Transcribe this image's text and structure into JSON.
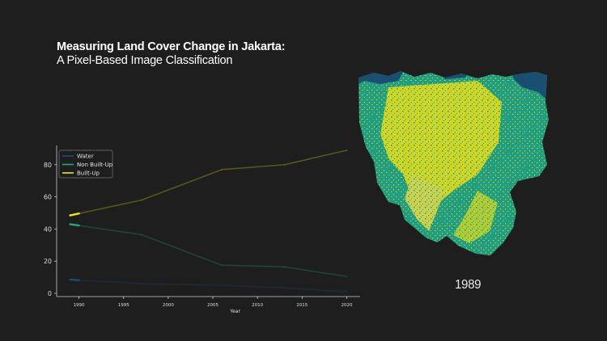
{
  "header": {
    "title": "Measuring Land Cover Change in Jakarta:",
    "subtitle": "A Pixel-Based Image Classification"
  },
  "map": {
    "year_label": "1989",
    "palette": {
      "water": "#1b4f72",
      "non_built_up": "#23a884",
      "built_up": "#e8e81a"
    }
  },
  "chart_data": {
    "type": "line",
    "title": "",
    "xlabel": "Year",
    "ylabel": "",
    "xlim": [
      1987.5,
      2021.5
    ],
    "ylim": [
      -2,
      92
    ],
    "xticks": [
      1990,
      1995,
      2000,
      2005,
      2010,
      2015,
      2020
    ],
    "yticks": [
      0,
      20,
      40,
      60,
      80
    ],
    "x": [
      1989,
      1997,
      2006,
      2013,
      2020
    ],
    "highlight_range": [
      1989,
      1990
    ],
    "grid": false,
    "legend_position": "top-left",
    "series": [
      {
        "name": "Water",
        "color": "#1b4f72",
        "values": [
          8.5,
          6,
          5,
          3.5,
          1
        ]
      },
      {
        "name": "Non Built-Up",
        "color": "#23a884",
        "values": [
          43,
          36.5,
          17.5,
          16.5,
          10.5
        ]
      },
      {
        "name": "Built-Up",
        "color": "#e8e81a",
        "values": [
          48.5,
          58,
          77,
          80,
          89
        ]
      }
    ]
  }
}
